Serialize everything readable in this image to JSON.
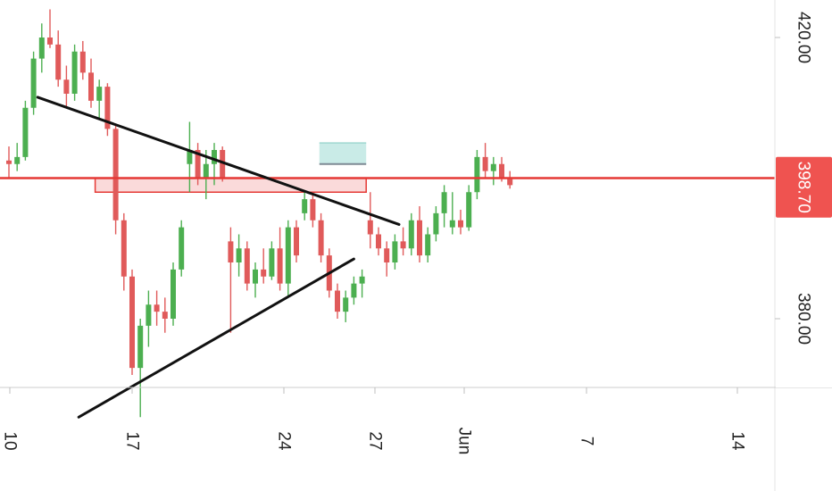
{
  "chart_data": {
    "type": "candlestick",
    "title": "",
    "xlabel": "",
    "ylabel": "",
    "ylim": [
      363.0,
      424.0
    ],
    "grid": false,
    "x_tick_labels": [
      "10",
      "17",
      "24",
      "27",
      "Jun",
      "7",
      "14"
    ],
    "y_tick_labels": [
      "420.00",
      "380.00"
    ],
    "current_price_label": "398.70",
    "current_price": 398.7,
    "colors": {
      "up": "#4caf50",
      "down": "#e05a5a",
      "resistance_line": "#e53935",
      "resistance_zone": "#fadada",
      "target_zone": "#c9ebe7",
      "axis_bg": "#ffffff",
      "price_badge": "#ef5350",
      "trendline": "#111111"
    },
    "candles": [
      {
        "o": 402.5,
        "h": 404.5,
        "l": 400.0,
        "c": 402.0
      },
      {
        "o": 402.0,
        "h": 405.0,
        "l": 401.0,
        "c": 403.0
      },
      {
        "o": 403.0,
        "h": 411.0,
        "l": 402.5,
        "c": 410.0
      },
      {
        "o": 410.0,
        "h": 418.0,
        "l": 409.0,
        "c": 417.0
      },
      {
        "o": 417.0,
        "h": 422.0,
        "l": 415.0,
        "c": 420.0
      },
      {
        "o": 420.0,
        "h": 424.0,
        "l": 418.5,
        "c": 419.0
      },
      {
        "o": 419.0,
        "h": 421.0,
        "l": 413.0,
        "c": 414.0
      },
      {
        "o": 414.0,
        "h": 416.0,
        "l": 410.0,
        "c": 412.0
      },
      {
        "o": 412.0,
        "h": 419.0,
        "l": 411.0,
        "c": 418.0
      },
      {
        "o": 418.0,
        "h": 419.5,
        "l": 414.0,
        "c": 415.0
      },
      {
        "o": 415.0,
        "h": 417.0,
        "l": 410.0,
        "c": 411.0
      },
      {
        "o": 411.0,
        "h": 414.0,
        "l": 408.5,
        "c": 413.0
      },
      {
        "o": 413.0,
        "h": 413.5,
        "l": 406.0,
        "c": 407.0
      },
      {
        "o": 407.0,
        "h": 407.5,
        "l": 392.0,
        "c": 394.0
      },
      {
        "o": 394.0,
        "h": 395.0,
        "l": 384.0,
        "c": 386.0
      },
      {
        "o": 386.0,
        "h": 387.0,
        "l": 372.0,
        "c": 373.0
      },
      {
        "o": 373.0,
        "h": 380.0,
        "l": 366.0,
        "c": 379.0
      },
      {
        "o": 379.0,
        "h": 384.0,
        "l": 376.0,
        "c": 382.0
      },
      {
        "o": 382.0,
        "h": 384.0,
        "l": 379.0,
        "c": 381.0
      },
      {
        "o": 381.0,
        "h": 383.0,
        "l": 378.0,
        "c": 380.0
      },
      {
        "o": 380.0,
        "h": 388.0,
        "l": 379.0,
        "c": 387.0
      },
      {
        "o": 387.0,
        "h": 394.0,
        "l": 386.0,
        "c": 393.0
      },
      {
        "o": 402.0,
        "h": 408.0,
        "l": 398.0,
        "c": 404.0
      },
      {
        "o": 404.0,
        "h": 405.0,
        "l": 399.0,
        "c": 400.0
      },
      {
        "o": 400.0,
        "h": 404.0,
        "l": 397.0,
        "c": 402.0
      },
      {
        "o": 402.0,
        "h": 405.0,
        "l": 399.0,
        "c": 404.0
      },
      {
        "o": 404.0,
        "h": 404.5,
        "l": 399.5,
        "c": 400.0
      },
      {
        "o": 391.0,
        "h": 393.0,
        "l": 378.0,
        "c": 388.0
      },
      {
        "o": 388.0,
        "h": 392.0,
        "l": 386.0,
        "c": 390.0
      },
      {
        "o": 390.0,
        "h": 391.0,
        "l": 384.0,
        "c": 385.0
      },
      {
        "o": 385.0,
        "h": 388.0,
        "l": 383.0,
        "c": 387.0
      },
      {
        "o": 387.0,
        "h": 390.0,
        "l": 385.0,
        "c": 386.0
      },
      {
        "o": 386.0,
        "h": 391.0,
        "l": 385.5,
        "c": 390.0
      },
      {
        "o": 390.0,
        "h": 393.0,
        "l": 384.0,
        "c": 385.0
      },
      {
        "o": 385.0,
        "h": 394.0,
        "l": 383.0,
        "c": 393.0
      },
      {
        "o": 393.0,
        "h": 394.0,
        "l": 388.0,
        "c": 389.0
      },
      {
        "o": 395.0,
        "h": 398.0,
        "l": 394.0,
        "c": 397.0
      },
      {
        "o": 397.0,
        "h": 398.0,
        "l": 393.0,
        "c": 394.0
      },
      {
        "o": 394.0,
        "h": 395.0,
        "l": 388.0,
        "c": 389.0
      },
      {
        "o": 389.0,
        "h": 390.0,
        "l": 383.0,
        "c": 384.0
      },
      {
        "o": 384.0,
        "h": 385.0,
        "l": 380.0,
        "c": 381.0
      },
      {
        "o": 381.0,
        "h": 384.0,
        "l": 379.5,
        "c": 383.0
      },
      {
        "o": 383.0,
        "h": 386.0,
        "l": 382.0,
        "c": 385.0
      },
      {
        "o": 385.0,
        "h": 387.0,
        "l": 383.0,
        "c": 386.0
      },
      {
        "o": 394.0,
        "h": 398.0,
        "l": 390.0,
        "c": 392.0
      },
      {
        "o": 392.0,
        "h": 393.0,
        "l": 389.0,
        "c": 390.0
      },
      {
        "o": 390.0,
        "h": 391.0,
        "l": 386.0,
        "c": 388.0
      },
      {
        "o": 388.0,
        "h": 392.0,
        "l": 387.0,
        "c": 391.0
      },
      {
        "o": 391.0,
        "h": 393.0,
        "l": 389.0,
        "c": 390.0
      },
      {
        "o": 390.0,
        "h": 395.0,
        "l": 389.0,
        "c": 394.0
      },
      {
        "o": 394.0,
        "h": 396.0,
        "l": 388.0,
        "c": 389.0
      },
      {
        "o": 389.0,
        "h": 393.0,
        "l": 388.0,
        "c": 392.0
      },
      {
        "o": 392.0,
        "h": 396.0,
        "l": 391.0,
        "c": 395.0
      },
      {
        "o": 395.0,
        "h": 399.0,
        "l": 393.0,
        "c": 398.0
      },
      {
        "o": 393.0,
        "h": 398.0,
        "l": 392.0,
        "c": 394.0
      },
      {
        "o": 394.0,
        "h": 395.5,
        "l": 392.0,
        "c": 393.0
      },
      {
        "o": 393.0,
        "h": 399.0,
        "l": 392.5,
        "c": 398.0
      },
      {
        "o": 398.0,
        "h": 404.0,
        "l": 397.0,
        "c": 403.0
      },
      {
        "o": 403.0,
        "h": 405.0,
        "l": 400.0,
        "c": 401.0
      },
      {
        "o": 401.0,
        "h": 403.0,
        "l": 399.0,
        "c": 402.0
      },
      {
        "o": 402.0,
        "h": 403.0,
        "l": 399.5,
        "c": 400.0
      },
      {
        "o": 400.0,
        "h": 401.0,
        "l": 398.5,
        "c": 399.0
      }
    ],
    "drawings": {
      "triangle_upper": {
        "x1": 3.5,
        "y1": 411.5,
        "x2": 47.5,
        "y2": 393.4
      },
      "triangle_lower": {
        "x1": 8.5,
        "y1": 366.0,
        "x2": 42.0,
        "y2": 388.5
      },
      "resistance_zone": {
        "x_start": 10.5,
        "x_end": 43.5,
        "y_low": 398.0,
        "y_high": 400.0
      },
      "resistance_line": {
        "y": 400.0
      },
      "target_zone": {
        "x_start": 37.8,
        "x_end": 43.5,
        "y_low": 402.0,
        "y_high": 405.0
      }
    }
  }
}
